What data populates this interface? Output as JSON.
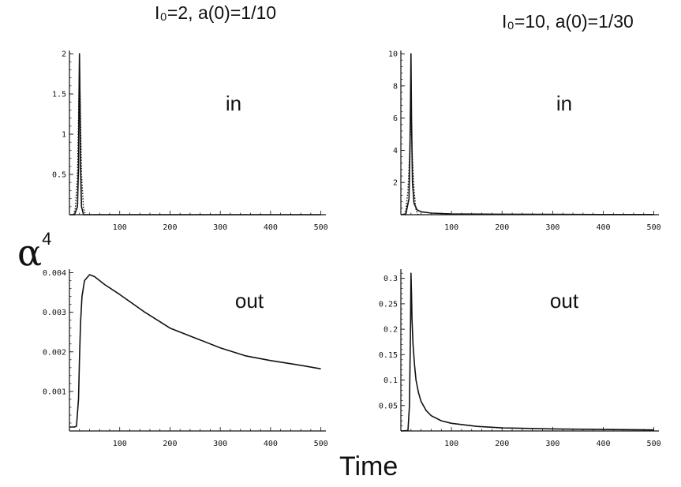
{
  "column_titles": [
    "I₀=2,  a(0)=1/10",
    "I₀=10,  a(0)=1/30"
  ],
  "ylabel_base": "α",
  "ylabel_power": "4",
  "xlabel": "Time",
  "chart_data": [
    {
      "type": "line",
      "panel_label": "in",
      "xlim": [
        0,
        510
      ],
      "ylim": [
        0,
        2.02
      ],
      "xticks": [
        100,
        200,
        300,
        400,
        500
      ],
      "xtick_labels": [
        "100",
        "200",
        "300",
        "400",
        "500"
      ],
      "yticks": [
        0.5,
        1,
        1.5,
        2
      ],
      "ytick_labels": [
        "0.5",
        "1",
        "1.5",
        "2"
      ],
      "grid": false,
      "series": [
        {
          "style": "solid",
          "x": [
            0,
            10,
            16,
            18,
            19,
            20,
            21,
            22,
            24,
            28,
            40,
            100,
            200,
            300,
            400,
            500
          ],
          "y": [
            0,
            0,
            0.1,
            0.6,
            1.4,
            2.0,
            1.4,
            0.6,
            0.1,
            0,
            0,
            0,
            0,
            0,
            0,
            0
          ]
        },
        {
          "style": "dotted",
          "x": [
            8,
            12,
            16,
            18,
            20,
            22,
            24,
            28,
            32
          ],
          "y": [
            0,
            0.08,
            0.5,
            1.2,
            1.9,
            1.2,
            0.5,
            0.08,
            0
          ]
        }
      ]
    },
    {
      "type": "line",
      "panel_label": "in",
      "xlim": [
        0,
        510
      ],
      "ylim": [
        0,
        10.1
      ],
      "xticks": [
        100,
        200,
        300,
        400,
        500
      ],
      "xtick_labels": [
        "100",
        "200",
        "300",
        "400",
        "500"
      ],
      "yticks": [
        2,
        4,
        6,
        8,
        10
      ],
      "ytick_labels": [
        "2",
        "4",
        "6",
        "8",
        "10"
      ],
      "grid": false,
      "series": [
        {
          "style": "solid",
          "x": [
            0,
            10,
            16,
            18,
            19,
            20,
            21,
            23,
            26,
            32,
            40,
            60,
            100,
            200,
            300,
            400,
            500
          ],
          "y": [
            0,
            0.05,
            1.0,
            4.0,
            7.0,
            10.0,
            6.0,
            2.0,
            0.7,
            0.3,
            0.18,
            0.1,
            0.05,
            0.03,
            0.02,
            0.01,
            0.01
          ]
        },
        {
          "style": "dotted",
          "x": [
            6,
            10,
            14,
            17,
            20,
            23,
            26,
            30,
            34
          ],
          "y": [
            0,
            0.3,
            1.5,
            3.5,
            6.0,
            3.5,
            1.5,
            0.3,
            0
          ]
        }
      ]
    },
    {
      "type": "line",
      "panel_label": "out",
      "xlim": [
        0,
        510
      ],
      "ylim": [
        0,
        0.00405
      ],
      "xticks": [
        100,
        200,
        300,
        400,
        500
      ],
      "xtick_labels": [
        "100",
        "200",
        "300",
        "400",
        "500"
      ],
      "yticks": [
        0.001,
        0.002,
        0.003,
        0.004
      ],
      "ytick_labels": [
        "0.001",
        "0.002",
        "0.003",
        "0.004"
      ],
      "grid": false,
      "series": [
        {
          "style": "solid",
          "x": [
            0,
            10,
            14,
            18,
            20,
            22,
            25,
            30,
            40,
            50,
            70,
            100,
            150,
            200,
            250,
            300,
            350,
            400,
            450,
            500
          ],
          "y": [
            0.0001,
            0.0001,
            0.00012,
            0.0008,
            0.0018,
            0.0027,
            0.0034,
            0.0038,
            0.00395,
            0.0039,
            0.0037,
            0.00345,
            0.003,
            0.0026,
            0.00235,
            0.0021,
            0.0019,
            0.00178,
            0.00168,
            0.00157
          ]
        }
      ]
    },
    {
      "type": "line",
      "panel_label": "out",
      "xlim": [
        0,
        510
      ],
      "ylim": [
        0,
        0.315
      ],
      "xticks": [
        100,
        200,
        300,
        400,
        500
      ],
      "xtick_labels": [
        "100",
        "200",
        "300",
        "400",
        "500"
      ],
      "yticks": [
        0.05,
        0.1,
        0.15,
        0.2,
        0.25,
        0.3
      ],
      "ytick_labels": [
        "0.05",
        "0.1",
        "0.15",
        "0.2",
        "0.25",
        "0.3"
      ],
      "grid": false,
      "series": [
        {
          "style": "solid",
          "x": [
            0,
            14,
            17,
            19,
            20,
            21,
            22,
            24,
            27,
            30,
            35,
            40,
            50,
            60,
            80,
            100,
            150,
            200,
            300,
            400,
            500
          ],
          "y": [
            0,
            0.001,
            0.05,
            0.2,
            0.31,
            0.27,
            0.22,
            0.17,
            0.13,
            0.1,
            0.075,
            0.058,
            0.04,
            0.03,
            0.02,
            0.015,
            0.009,
            0.006,
            0.004,
            0.003,
            0.002
          ]
        }
      ]
    }
  ]
}
